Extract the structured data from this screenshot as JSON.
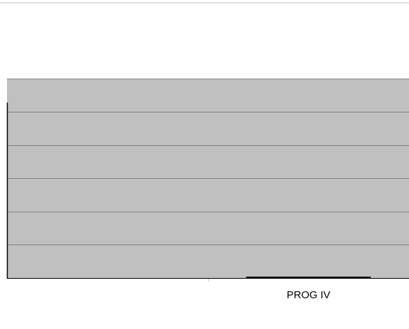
{
  "chart_data": {
    "type": "bar",
    "categories": [
      "",
      "PROG IV"
    ],
    "series": [
      {
        "values": [
          0,
          0
        ]
      }
    ],
    "title": "",
    "xlabel": "",
    "ylabel": "",
    "ylim": [
      0,
      5
    ],
    "grid": true,
    "legend": "none",
    "colors": {
      "plot_background": "#c0c0c0",
      "gridline": "#808080",
      "axis": "#000000",
      "bar": "#000000",
      "top_rule": "#c0c0c0"
    }
  }
}
